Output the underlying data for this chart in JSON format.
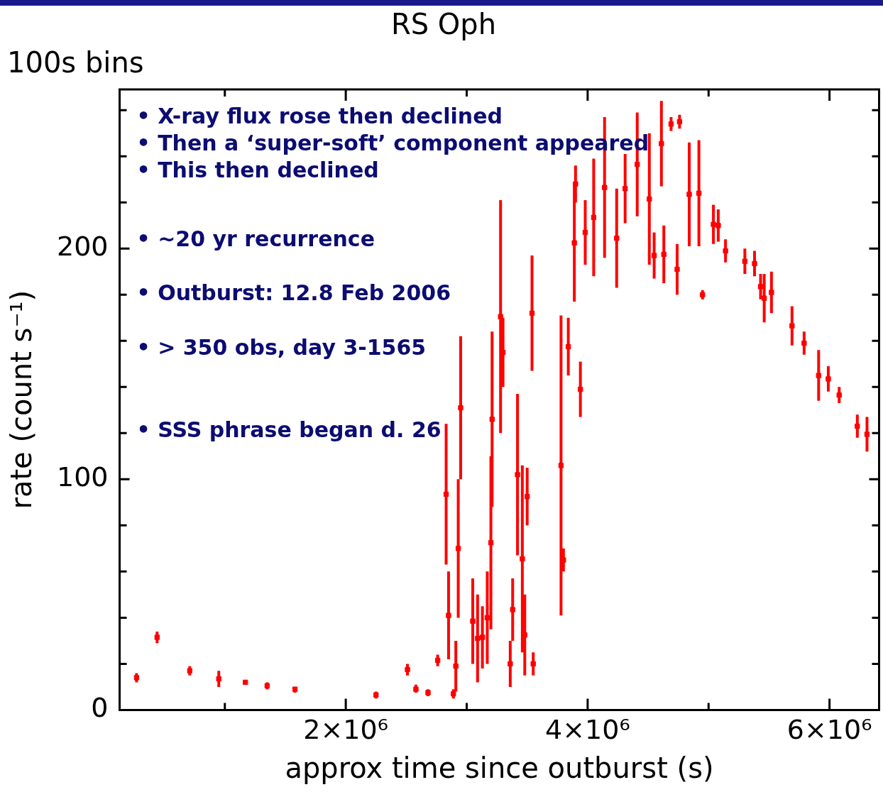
{
  "chart_data": {
    "type": "scatter",
    "title": "RS Oph",
    "subtitle": "100s bins",
    "xlabel": "approx time since outburst (s)",
    "ylabel": "rate (count s⁻¹)",
    "annotations": [
      "• X-ray flux rose then declined",
      "• Then a ‘super-soft’ component appeared",
      "• This then declined",
      "• ~20 yr recurrence",
      "• Outburst: 12.8 Feb 2006",
      "• > 350 obs, day 3-1565",
      "• SSS phrase began d. 26"
    ],
    "xlim": [
      130000,
      6410000
    ],
    "ylim": [
      0,
      269
    ],
    "xticks": [
      {
        "value": 1000000,
        "label": null
      },
      {
        "value": 2000000,
        "label": "2×10⁶"
      },
      {
        "value": 3000000,
        "label": null
      },
      {
        "value": 4000000,
        "label": "4×10⁶"
      },
      {
        "value": 5000000,
        "label": null
      },
      {
        "value": 6000000,
        "label": "6×10⁶"
      }
    ],
    "yticks": [
      0,
      {
        "value": 20,
        "label": null
      },
      {
        "value": 40,
        "label": null
      },
      {
        "value": 60,
        "label": null
      },
      {
        "value": 80,
        "label": null
      },
      100,
      {
        "value": 120,
        "label": null
      },
      {
        "value": 140,
        "label": null
      },
      {
        "value": 160,
        "label": null
      },
      {
        "value": 180,
        "label": null
      },
      200,
      {
        "value": 220,
        "label": null
      },
      {
        "value": 240,
        "label": null
      },
      {
        "value": 260,
        "label": null
      }
    ],
    "marker": "square",
    "series": [
      {
        "color": "#ff0000",
        "x": [
          270000,
          440000,
          710000,
          950000,
          1170000,
          1350000,
          1580000,
          2250000,
          2510000,
          2580000,
          2680000,
          2760000,
          2830000,
          2850000,
          2890000,
          2910000,
          2930000,
          2950000,
          3050000,
          3090000,
          3130000,
          3170000,
          3210000,
          3200000,
          3280000,
          3300000,
          3360000,
          3380000,
          3420000,
          3460000,
          3480000,
          3500000,
          3540000,
          3550000,
          3780000,
          3800000,
          3840000,
          3890000,
          3940000,
          3900000,
          3980000,
          4050000,
          4140000,
          4240000,
          4310000,
          4410000,
          4510000,
          4610000,
          4550000,
          4630000,
          4690000,
          4760000,
          4740000,
          4840000,
          4920000,
          4950000,
          5040000,
          5080000,
          5140000,
          5300000,
          5380000,
          5430000,
          5460000,
          5520000,
          5690000,
          5790000,
          5910000,
          5990000,
          6080000,
          6230000,
          6310000
        ],
        "values": [
          14,
          31.5,
          17,
          13.5,
          12,
          10.5,
          9,
          6.5,
          17.5,
          9,
          7.5,
          21.5,
          93.5,
          41,
          7,
          19,
          70,
          131,
          38.5,
          31,
          31.5,
          40,
          126,
          72.5,
          170.5,
          155,
          20,
          43.5,
          102,
          65.5,
          32.5,
          92.5,
          172,
          20,
          106,
          65,
          157.5,
          202.5,
          139,
          228,
          207,
          213.5,
          226.5,
          204.5,
          226,
          236.5,
          221.5,
          245.5,
          197,
          197.5,
          254,
          255,
          191,
          223.5,
          224,
          180,
          210.5,
          210,
          199,
          194.5,
          193.5,
          183.5,
          178.5,
          181,
          166.5,
          159,
          145,
          143.5,
          136.5,
          123,
          119.5
        ],
        "errors": [
          [
            12,
            16
          ],
          [
            29,
            34
          ],
          [
            15,
            19
          ],
          [
            10,
            17
          ],
          [
            11,
            13
          ],
          [
            9,
            12
          ],
          [
            7.5,
            10
          ],
          [
            5,
            8
          ],
          [
            15,
            20
          ],
          [
            7.5,
            11
          ],
          [
            6,
            9
          ],
          [
            19,
            24
          ],
          [
            63,
            124
          ],
          [
            22,
            60
          ],
          [
            5,
            9
          ],
          [
            8,
            30
          ],
          [
            40,
            100
          ],
          [
            100,
            162
          ],
          [
            20,
            57
          ],
          [
            12,
            50
          ],
          [
            18,
            45
          ],
          [
            20,
            60
          ],
          [
            88,
            164
          ],
          [
            35,
            110
          ],
          [
            120,
            221
          ],
          [
            140,
            170
          ],
          [
            10,
            30
          ],
          [
            30,
            57
          ],
          [
            67,
            137
          ],
          [
            25,
            106
          ],
          [
            15,
            50
          ],
          [
            80,
            105
          ],
          [
            147,
            197
          ],
          [
            15,
            25
          ],
          [
            41,
            171
          ],
          [
            60,
            70
          ],
          [
            145,
            170
          ],
          [
            177,
            228
          ],
          [
            127,
            151
          ],
          [
            220,
            236
          ],
          [
            193,
            221
          ],
          [
            188,
            239
          ],
          [
            196,
            257
          ],
          [
            183,
            226
          ],
          [
            211,
            241
          ],
          [
            214,
            259
          ],
          [
            193,
            250
          ],
          [
            227,
            264
          ],
          [
            187,
            207
          ],
          [
            185,
            210
          ],
          [
            251,
            257
          ],
          [
            252,
            258
          ],
          [
            180,
            202
          ],
          [
            201,
            246
          ],
          [
            201,
            247
          ],
          [
            178,
            182
          ],
          [
            202,
            219
          ],
          [
            203,
            217
          ],
          [
            194,
            204
          ],
          [
            189,
            200
          ],
          [
            188,
            199
          ],
          [
            178,
            189
          ],
          [
            168,
            189
          ],
          [
            172,
            190
          ],
          [
            158,
            175
          ],
          [
            154,
            164
          ],
          [
            134,
            156
          ],
          [
            138,
            149
          ],
          [
            133,
            140
          ],
          [
            118,
            128
          ],
          [
            112,
            127
          ]
        ]
      }
    ]
  }
}
